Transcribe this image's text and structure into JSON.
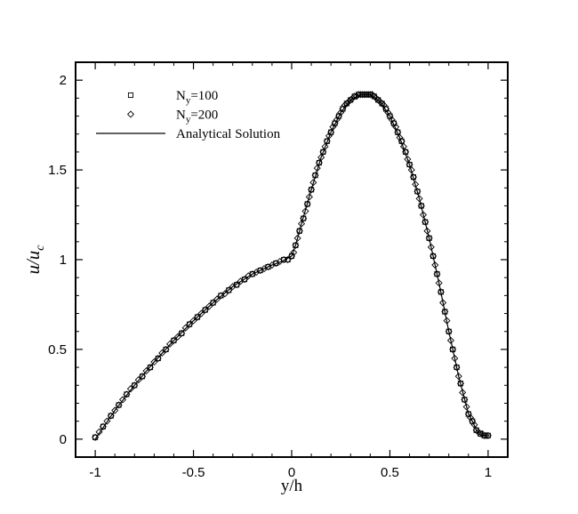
{
  "chart_data": {
    "type": "line",
    "xlabel": "y/h",
    "ylabel": {
      "main": "u/u",
      "sub": "c"
    },
    "xlim": [
      -1.1,
      1.1
    ],
    "ylim": [
      -0.1,
      2.1
    ],
    "xticks": [
      -1,
      -0.5,
      0,
      0.5,
      1
    ],
    "yticks": [
      0,
      0.5,
      1,
      1.5,
      2
    ],
    "xtick_labels": [
      "-1",
      "-0.5",
      "0",
      "0.5",
      "1"
    ],
    "ytick_labels": [
      "0",
      "0.5",
      "1",
      "1.5",
      "2"
    ],
    "legend_position": "top-left",
    "legend": [
      {
        "marker": "square",
        "text_main": "N",
        "text_sub": "y",
        "text_tail": "=100"
      },
      {
        "marker": "diamond",
        "text_main": "N",
        "text_sub": "y",
        "text_tail": "=200"
      },
      {
        "marker": "line",
        "text_main": "Analytical Solution",
        "text_sub": "",
        "text_tail": ""
      }
    ],
    "series": [
      {
        "name": "Ny=100",
        "marker": "square",
        "x": [
          -1.0,
          -0.96,
          -0.92,
          -0.88,
          -0.84,
          -0.8,
          -0.76,
          -0.72,
          -0.68,
          -0.64,
          -0.6,
          -0.56,
          -0.52,
          -0.48,
          -0.44,
          -0.4,
          -0.36,
          -0.32,
          -0.28,
          -0.24,
          -0.2,
          -0.16,
          -0.12,
          -0.08,
          -0.04,
          -0.02,
          0.0,
          0.02,
          0.04,
          0.06,
          0.08,
          0.1,
          0.12,
          0.14,
          0.16,
          0.18,
          0.2,
          0.22,
          0.24,
          0.26,
          0.28,
          0.3,
          0.32,
          0.34,
          0.36,
          0.38,
          0.4,
          0.42,
          0.44,
          0.46,
          0.48,
          0.5,
          0.52,
          0.54,
          0.56,
          0.58,
          0.6,
          0.62,
          0.64,
          0.66,
          0.68,
          0.7,
          0.72,
          0.74,
          0.76,
          0.78,
          0.8,
          0.82,
          0.84,
          0.86,
          0.88,
          0.9,
          0.92,
          0.94,
          0.96,
          0.98,
          1.0
        ],
        "y": [
          0.01,
          0.07,
          0.13,
          0.19,
          0.25,
          0.3,
          0.35,
          0.4,
          0.45,
          0.5,
          0.55,
          0.59,
          0.64,
          0.68,
          0.72,
          0.76,
          0.8,
          0.83,
          0.86,
          0.89,
          0.92,
          0.94,
          0.96,
          0.98,
          1.0,
          1.0,
          1.02,
          1.08,
          1.16,
          1.23,
          1.31,
          1.39,
          1.47,
          1.54,
          1.6,
          1.66,
          1.71,
          1.76,
          1.8,
          1.84,
          1.87,
          1.89,
          1.91,
          1.92,
          1.92,
          1.92,
          1.92,
          1.91,
          1.89,
          1.87,
          1.84,
          1.8,
          1.76,
          1.71,
          1.66,
          1.6,
          1.53,
          1.46,
          1.38,
          1.3,
          1.21,
          1.12,
          1.02,
          0.92,
          0.82,
          0.71,
          0.6,
          0.5,
          0.4,
          0.31,
          0.22,
          0.14,
          0.1,
          0.05,
          0.03,
          0.02,
          0.02
        ]
      },
      {
        "name": "Ny=200",
        "marker": "diamond",
        "x": [
          -1.0,
          -0.98,
          -0.96,
          -0.94,
          -0.92,
          -0.9,
          -0.88,
          -0.86,
          -0.84,
          -0.82,
          -0.8,
          -0.78,
          -0.76,
          -0.74,
          -0.72,
          -0.7,
          -0.68,
          -0.66,
          -0.64,
          -0.62,
          -0.6,
          -0.58,
          -0.56,
          -0.54,
          -0.52,
          -0.5,
          -0.48,
          -0.46,
          -0.44,
          -0.42,
          -0.4,
          -0.38,
          -0.36,
          -0.34,
          -0.32,
          -0.3,
          -0.28,
          -0.26,
          -0.24,
          -0.22,
          -0.2,
          -0.18,
          -0.16,
          -0.14,
          -0.12,
          -0.1,
          -0.08,
          -0.06,
          -0.04,
          -0.02,
          0.0,
          0.01,
          0.02,
          0.03,
          0.04,
          0.05,
          0.06,
          0.07,
          0.08,
          0.09,
          0.1,
          0.11,
          0.12,
          0.13,
          0.14,
          0.15,
          0.16,
          0.17,
          0.18,
          0.19,
          0.2,
          0.21,
          0.22,
          0.23,
          0.24,
          0.25,
          0.26,
          0.27,
          0.28,
          0.29,
          0.3,
          0.31,
          0.32,
          0.33,
          0.34,
          0.35,
          0.36,
          0.37,
          0.38,
          0.39,
          0.4,
          0.41,
          0.42,
          0.43,
          0.44,
          0.45,
          0.46,
          0.47,
          0.48,
          0.49,
          0.5,
          0.51,
          0.52,
          0.53,
          0.54,
          0.55,
          0.56,
          0.57,
          0.58,
          0.59,
          0.6,
          0.61,
          0.62,
          0.63,
          0.64,
          0.65,
          0.66,
          0.67,
          0.68,
          0.69,
          0.7,
          0.71,
          0.72,
          0.73,
          0.74,
          0.75,
          0.76,
          0.77,
          0.78,
          0.79,
          0.8,
          0.81,
          0.82,
          0.83,
          0.84,
          0.85,
          0.86,
          0.87,
          0.88,
          0.89,
          0.9,
          0.91,
          0.92,
          0.93,
          0.94,
          0.95,
          0.96,
          0.97,
          0.98,
          0.99,
          1.0
        ],
        "y": [
          0.01,
          0.04,
          0.07,
          0.1,
          0.13,
          0.16,
          0.19,
          0.22,
          0.25,
          0.28,
          0.3,
          0.33,
          0.35,
          0.38,
          0.4,
          0.43,
          0.45,
          0.48,
          0.5,
          0.53,
          0.55,
          0.57,
          0.59,
          0.62,
          0.64,
          0.66,
          0.68,
          0.7,
          0.72,
          0.74,
          0.76,
          0.78,
          0.8,
          0.81,
          0.83,
          0.85,
          0.86,
          0.88,
          0.89,
          0.91,
          0.92,
          0.93,
          0.94,
          0.95,
          0.96,
          0.97,
          0.98,
          0.99,
          1.0,
          1.0,
          1.02,
          1.04,
          1.08,
          1.12,
          1.16,
          1.2,
          1.23,
          1.27,
          1.31,
          1.35,
          1.39,
          1.43,
          1.47,
          1.51,
          1.54,
          1.57,
          1.6,
          1.63,
          1.66,
          1.69,
          1.71,
          1.74,
          1.76,
          1.78,
          1.8,
          1.82,
          1.84,
          1.86,
          1.87,
          1.88,
          1.89,
          1.9,
          1.91,
          1.91,
          1.92,
          1.92,
          1.92,
          1.92,
          1.92,
          1.92,
          1.92,
          1.92,
          1.91,
          1.9,
          1.89,
          1.88,
          1.87,
          1.86,
          1.84,
          1.82,
          1.8,
          1.78,
          1.76,
          1.74,
          1.71,
          1.68,
          1.66,
          1.63,
          1.6,
          1.56,
          1.53,
          1.5,
          1.46,
          1.42,
          1.38,
          1.34,
          1.3,
          1.25,
          1.21,
          1.16,
          1.12,
          1.07,
          1.02,
          0.97,
          0.92,
          0.87,
          0.82,
          0.76,
          0.71,
          0.66,
          0.6,
          0.55,
          0.5,
          0.45,
          0.4,
          0.35,
          0.31,
          0.26,
          0.22,
          0.18,
          0.14,
          0.12,
          0.1,
          0.08,
          0.05,
          0.04,
          0.03,
          0.03,
          0.02,
          0.02,
          0.02
        ]
      },
      {
        "name": "Analytical Solution",
        "marker": "line",
        "x": [
          -1.0,
          -0.9,
          -0.8,
          -0.7,
          -0.6,
          -0.5,
          -0.4,
          -0.3,
          -0.2,
          -0.1,
          -0.05,
          0.0,
          0.02,
          0.05,
          0.1,
          0.15,
          0.2,
          0.25,
          0.3,
          0.35,
          0.4,
          0.45,
          0.5,
          0.55,
          0.6,
          0.65,
          0.7,
          0.75,
          0.8,
          0.85,
          0.9,
          0.92,
          0.94,
          0.96,
          0.98,
          1.0
        ],
        "y": [
          0.0,
          0.16,
          0.3,
          0.43,
          0.55,
          0.66,
          0.76,
          0.85,
          0.92,
          0.97,
          0.99,
          1.02,
          1.08,
          1.2,
          1.39,
          1.57,
          1.71,
          1.82,
          1.89,
          1.92,
          1.92,
          1.88,
          1.8,
          1.68,
          1.53,
          1.34,
          1.12,
          0.87,
          0.6,
          0.35,
          0.14,
          0.1,
          0.05,
          0.03,
          0.02,
          0.02
        ]
      }
    ]
  }
}
